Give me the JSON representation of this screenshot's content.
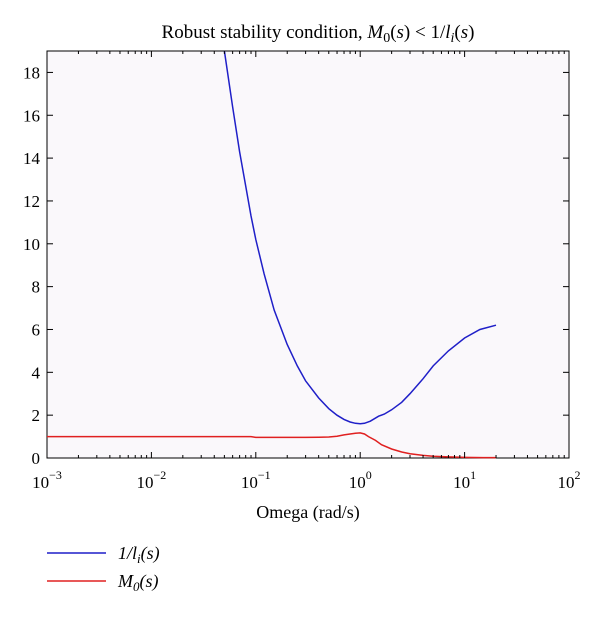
{
  "chart_data": {
    "type": "line",
    "title": "Robust stability condition, M0(s) < 1/li(s)",
    "xlabel": "Omega (rad/s)",
    "ylabel": "",
    "x_scale": "log",
    "xlim": [
      0.001,
      100
    ],
    "ylim": [
      0,
      19
    ],
    "x_ticks": [
      0.001,
      0.01,
      0.1,
      1,
      10,
      100
    ],
    "x_tick_labels": [
      {
        "base": "10",
        "exp": "−3"
      },
      {
        "base": "10",
        "exp": "−2"
      },
      {
        "base": "10",
        "exp": "−1"
      },
      {
        "base": "10",
        "exp": "0"
      },
      {
        "base": "10",
        "exp": "1"
      },
      {
        "base": "10",
        "exp": "2"
      }
    ],
    "y_ticks": [
      0,
      2,
      4,
      6,
      8,
      10,
      12,
      14,
      16,
      18
    ],
    "y_tick_labels": [
      "0",
      "2",
      "4",
      "6",
      "8",
      "10",
      "12",
      "14",
      "16",
      "18"
    ],
    "grid": false,
    "legend_position": "bottom-left, below plot",
    "background_color": "#faf8fb",
    "series": [
      {
        "name": "1/li(s)",
        "color": "#1f1fc8",
        "x": [
          0.05,
          0.06,
          0.07,
          0.08,
          0.09,
          0.1,
          0.12,
          0.15,
          0.2,
          0.25,
          0.3,
          0.4,
          0.5,
          0.6,
          0.7,
          0.8,
          0.9,
          1.0,
          1.1,
          1.25,
          1.5,
          1.7,
          2.0,
          2.5,
          3.0,
          4.0,
          5.0,
          7.0,
          10.0,
          14.0,
          20.0
        ],
        "values": [
          19.0,
          16.4,
          14.3,
          12.7,
          11.3,
          10.2,
          8.6,
          6.9,
          5.3,
          4.3,
          3.6,
          2.8,
          2.3,
          2.0,
          1.8,
          1.68,
          1.62,
          1.6,
          1.62,
          1.72,
          1.95,
          2.05,
          2.25,
          2.6,
          3.0,
          3.7,
          4.3,
          5.0,
          5.6,
          6.0,
          6.2
        ]
      },
      {
        "name": "M0(s)",
        "color": "#e02020",
        "x": [
          0.001,
          0.01,
          0.05,
          0.09,
          0.1,
          0.2,
          0.3,
          0.4,
          0.5,
          0.6,
          0.7,
          0.8,
          0.9,
          1.0,
          1.1,
          1.2,
          1.4,
          1.6,
          2.0,
          2.5,
          3.0,
          4.0,
          5.0,
          7.0,
          10.0,
          15.0,
          20.0
        ],
        "values": [
          1.0,
          1.0,
          1.0,
          1.0,
          0.96,
          0.96,
          0.96,
          0.97,
          0.98,
          1.02,
          1.08,
          1.12,
          1.16,
          1.17,
          1.12,
          1.0,
          0.82,
          0.62,
          0.42,
          0.28,
          0.2,
          0.12,
          0.08,
          0.05,
          0.03,
          0.02,
          0.02
        ]
      }
    ]
  }
}
